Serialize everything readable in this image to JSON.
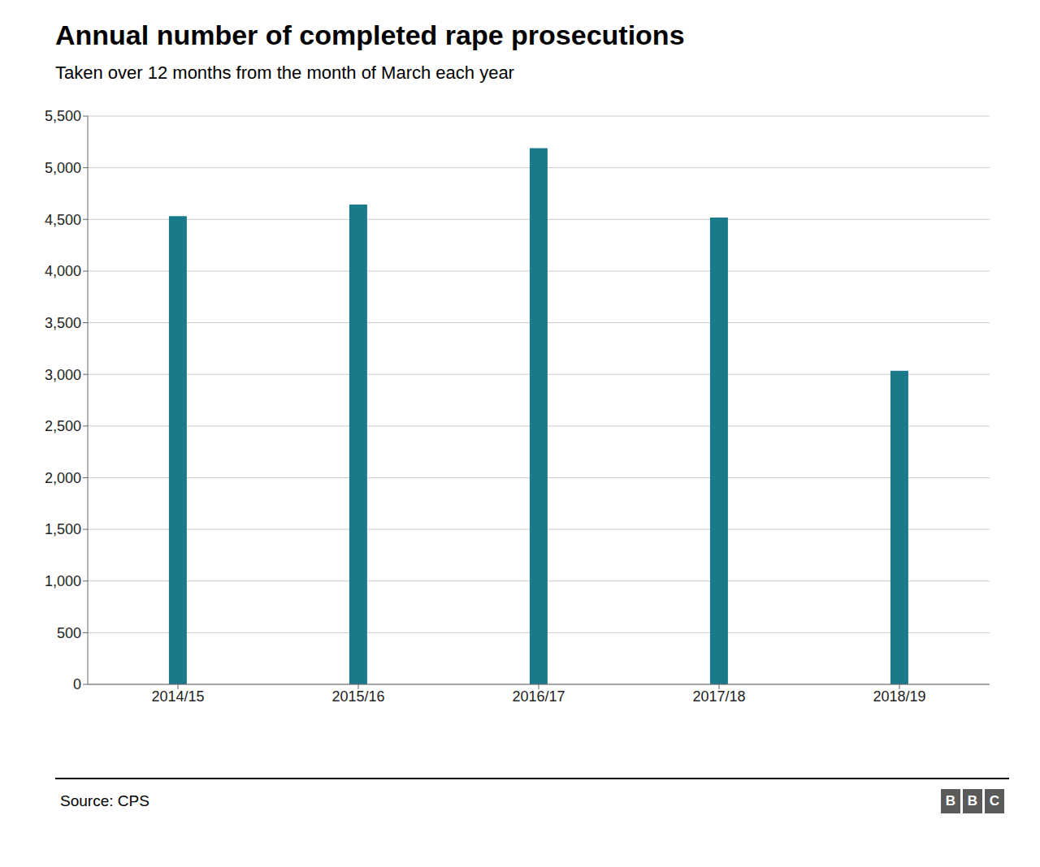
{
  "chart_data": {
    "type": "bar",
    "title": "Annual number of completed rape prosecutions",
    "subtitle": "Taken over 12 months from the month of March each year",
    "source": "Source: CPS",
    "logo": [
      "B",
      "B",
      "C"
    ],
    "categories": [
      "2014/15",
      "2015/16",
      "2016/17",
      "2017/18",
      "2018/19"
    ],
    "values": [
      4531,
      4643,
      5190,
      4517,
      3034
    ],
    "color": "#1a7a8a",
    "ylim": [
      0,
      5500
    ],
    "yticks": [
      0,
      500,
      {
        "value": 1000,
        "label": "1,000"
      },
      {
        "value": 1500,
        "label": "1,500"
      },
      {
        "value": 2000,
        "label": "2,000"
      },
      {
        "value": 2500,
        "label": "2,500"
      },
      {
        "value": 3000,
        "label": "3,000"
      },
      {
        "value": 3500,
        "label": "3,500"
      },
      {
        "value": 4000,
        "label": "4,000"
      },
      {
        "value": 4500,
        "label": "4,500"
      },
      {
        "value": 5000,
        "label": "5,000"
      },
      {
        "value": 5500,
        "label": "5,500"
      }
    ],
    "grid": true
  }
}
